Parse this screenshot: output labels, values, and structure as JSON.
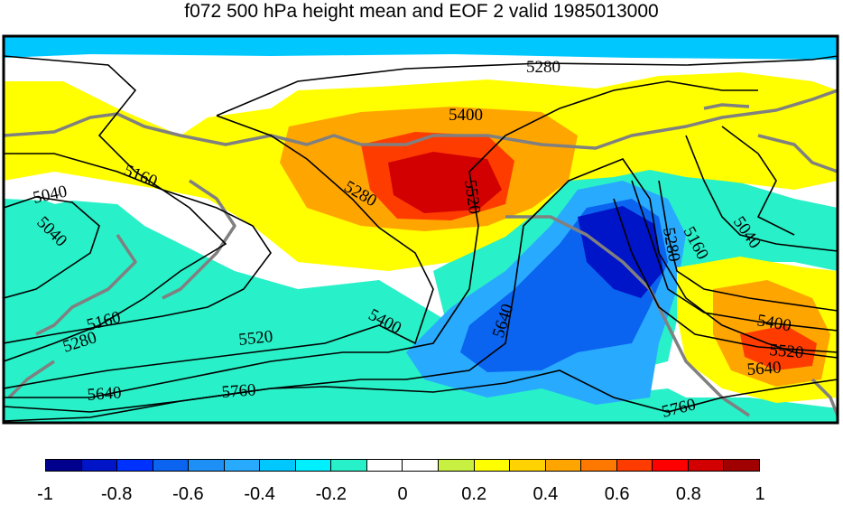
{
  "title": "f072 500 hPa height mean and EOF 2 valid 1985013000",
  "map": {
    "contour_levels": [
      "5040",
      "5160",
      "5280",
      "5400",
      "5520",
      "5640",
      "5760"
    ],
    "contour_labels": [
      {
        "text": "5280"
      },
      {
        "text": "5400"
      },
      {
        "text": "5160"
      },
      {
        "text": "5040"
      },
      {
        "text": "5040"
      },
      {
        "text": "5280"
      },
      {
        "text": "5520"
      },
      {
        "text": "5040"
      },
      {
        "text": "5160"
      },
      {
        "text": "5280"
      },
      {
        "text": "5160"
      },
      {
        "text": "5280"
      },
      {
        "text": "5400"
      },
      {
        "text": "5520"
      },
      {
        "text": "5640"
      },
      {
        "text": "5400"
      },
      {
        "text": "5520"
      },
      {
        "text": "5640"
      },
      {
        "text": "5640"
      },
      {
        "text": "5760"
      },
      {
        "text": "5760"
      }
    ]
  },
  "colorbar": {
    "colors": [
      "#00008c",
      "#0014c8",
      "#0032ff",
      "#0a64f0",
      "#1e90f5",
      "#28aaff",
      "#00c8ff",
      "#00f0ff",
      "#28f0c8",
      "#ffffff",
      "#ffffff",
      "#c8f040",
      "#ffff00",
      "#ffd200",
      "#ffa500",
      "#ff7800",
      "#ff3c00",
      "#ff0000",
      "#d20000",
      "#a00000"
    ],
    "tick_labels": [
      "-1",
      "-0.8",
      "-0.6",
      "-0.4",
      "-0.2",
      "0",
      "0.2",
      "0.4",
      "0.6",
      "0.8",
      "1"
    ]
  }
}
